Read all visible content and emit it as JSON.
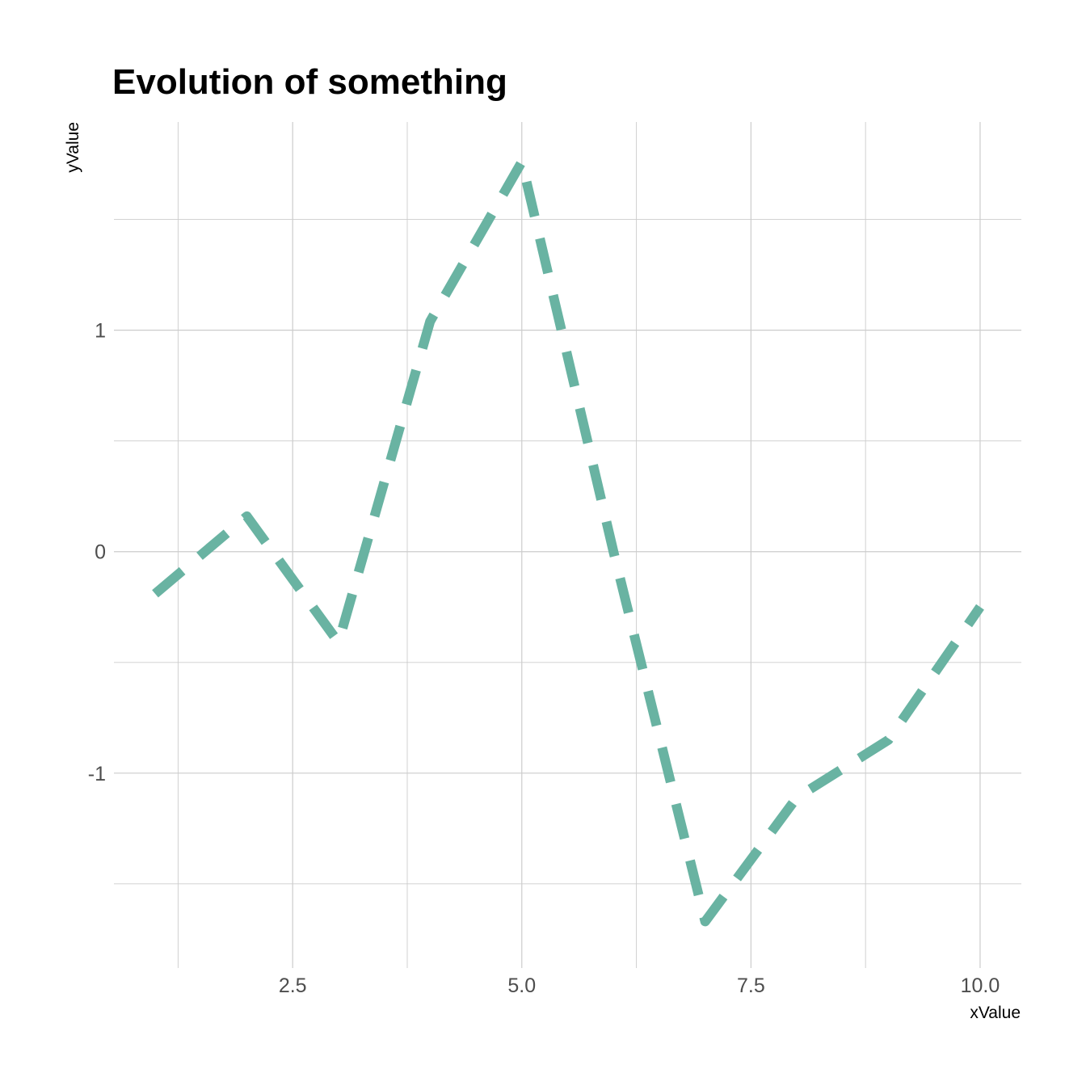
{
  "chart_data": {
    "type": "line",
    "title": "Evolution of something",
    "xlabel": "xValue",
    "ylabel": "yValue",
    "xlim": [
      0.55,
      10.45
    ],
    "ylim": [
      -1.88,
      1.94
    ],
    "x_ticks": [
      2.5,
      5.0,
      7.5,
      10.0
    ],
    "x_tick_labels": [
      "2.5",
      "5.0",
      "7.5",
      "10.0"
    ],
    "x_minor_ticks": [
      1.25,
      3.75,
      6.25,
      8.75
    ],
    "y_ticks": [
      -1,
      0,
      1
    ],
    "y_tick_labels": [
      "-1",
      "0",
      "1"
    ],
    "y_minor_ticks": [
      -1.5,
      -0.5,
      0.5,
      1.5
    ],
    "grid": true,
    "series": [
      {
        "color": "#69b3a2",
        "style": "dashed",
        "x": [
          1,
          2,
          3,
          4,
          5,
          6,
          7,
          8,
          9,
          10
        ],
        "y": [
          -0.19,
          0.16,
          -0.41,
          1.04,
          1.76,
          0.0,
          -1.67,
          -1.11,
          -0.85,
          -0.25
        ]
      }
    ]
  }
}
